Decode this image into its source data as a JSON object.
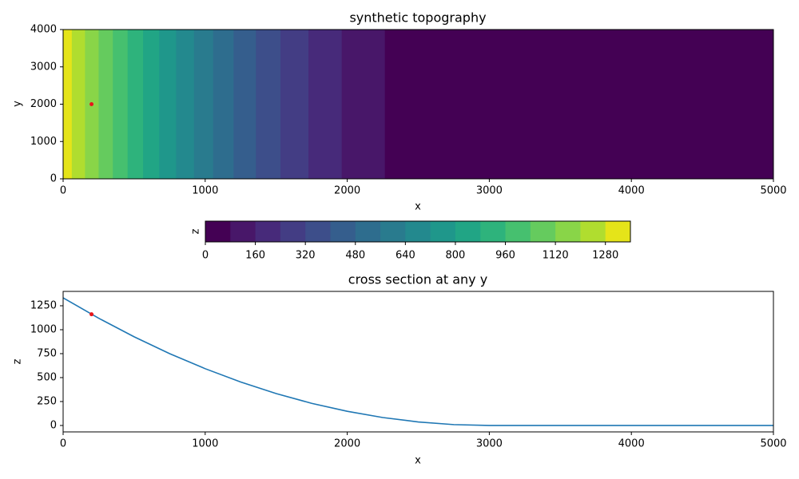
{
  "chart_data": [
    {
      "type": "contourf",
      "title": "synthetic topography",
      "xlabel": "x",
      "ylabel": "y",
      "xlim": [
        0,
        5000
      ],
      "ylim": [
        0,
        4000
      ],
      "xticks": [
        0,
        1000,
        2000,
        3000,
        4000,
        5000
      ],
      "yticks": [
        0,
        1000,
        2000,
        3000,
        4000
      ],
      "levels": [
        0,
        80,
        160,
        240,
        320,
        400,
        480,
        560,
        640,
        720,
        800,
        880,
        960,
        1040,
        1120,
        1200,
        1280,
        1360
      ],
      "colors": [
        "#440154",
        "#481769",
        "#472a7a",
        "#433d84",
        "#3d4e8a",
        "#355e8d",
        "#2e6d8e",
        "#297b8e",
        "#23898e",
        "#1f978b",
        "#21a585",
        "#2eb37c",
        "#46c06f",
        "#65cb5e",
        "#89d548",
        "#b0dd2f",
        "#e5e419"
      ],
      "x_edges": [
        0,
        61,
        154,
        250,
        350,
        454,
        563,
        676,
        795,
        921,
        1056,
        1200,
        1357,
        1530,
        1727,
        1961,
        2265,
        5000
      ],
      "colorbar": {
        "label": "z",
        "lim": [
          0,
          1360
        ],
        "ticks": [
          0,
          160,
          320,
          480,
          640,
          800,
          960,
          1120,
          1280
        ]
      },
      "points": [
        {
          "x": 200,
          "y": 2000,
          "color": "#e8161b"
        }
      ]
    },
    {
      "type": "line",
      "title": "cross section at any y",
      "xlabel": "x",
      "ylabel": "z",
      "xlim": [
        0,
        5000
      ],
      "ylim": [
        -67,
        1400
      ],
      "xticks": [
        0,
        1000,
        2000,
        3000,
        4000,
        5000
      ],
      "yticks": [
        0,
        250,
        500,
        750,
        1000,
        1250
      ],
      "x": [
        0,
        250,
        500,
        750,
        1000,
        1250,
        1500,
        1750,
        2000,
        2250,
        2500,
        2750,
        3000,
        5000
      ],
      "series": [
        {
          "color": "#1f77b4",
          "values": [
            1333,
            1120,
            926,
            750,
            593,
            454,
            333,
            231,
            148,
            83,
            37,
            9,
            0,
            0
          ]
        }
      ],
      "points": [
        {
          "x": 200,
          "y": 1161,
          "color": "#e8161b"
        }
      ]
    }
  ]
}
